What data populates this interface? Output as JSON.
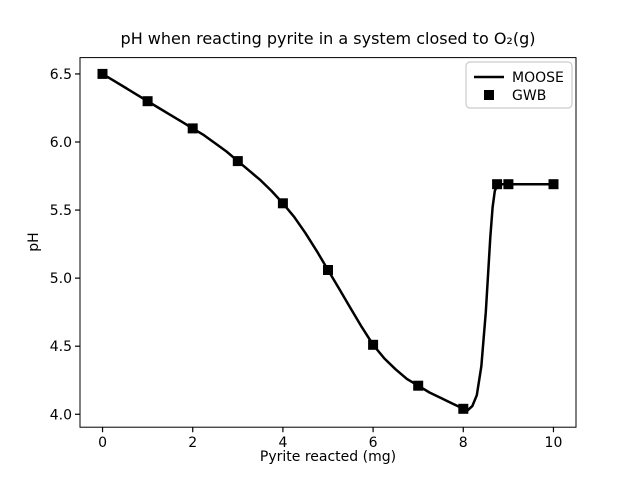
{
  "figure": {
    "background": "#ffffff",
    "foreground": "#000000"
  },
  "chart_data": {
    "type": "line",
    "title": "pH when reacting pyrite in a system closed to O₂(g)",
    "xlabel": "Pyrite reacted (mg)",
    "ylabel": "pH",
    "xlim": [
      -0.5,
      10.5
    ],
    "ylim": [
      3.905,
      6.62
    ],
    "grid": false,
    "legend_position": "upper-right",
    "x_ticks": [
      {
        "v": 0,
        "label": "0"
      },
      {
        "v": 2,
        "label": "2"
      },
      {
        "v": 4,
        "label": "4"
      },
      {
        "v": 6,
        "label": "6"
      },
      {
        "v": 8,
        "label": "8"
      },
      {
        "v": 10,
        "label": "10"
      }
    ],
    "y_ticks": [
      {
        "v": 4.0,
        "label": "4.0"
      },
      {
        "v": 4.5,
        "label": "4.5"
      },
      {
        "v": 5.0,
        "label": "5.0"
      },
      {
        "v": 5.5,
        "label": "5.5"
      },
      {
        "v": 6.0,
        "label": "6.0"
      },
      {
        "v": 6.5,
        "label": "6.5"
      }
    ],
    "series": [
      {
        "name": "MOOSE",
        "kind": "line",
        "color": "#000000",
        "line_width": 2.5,
        "x": [
          0,
          0.25,
          0.5,
          0.75,
          1,
          1.25,
          1.5,
          1.75,
          2,
          2.25,
          2.5,
          2.75,
          3,
          3.25,
          3.5,
          3.75,
          4,
          4.25,
          4.5,
          4.75,
          5,
          5.25,
          5.5,
          5.75,
          6,
          6.25,
          6.5,
          6.75,
          7,
          7.25,
          7.5,
          7.75,
          8,
          8.1,
          8.2,
          8.3,
          8.4,
          8.5,
          8.6,
          8.65,
          8.7,
          8.75,
          8.8,
          9,
          10
        ],
        "y": [
          6.5,
          6.45,
          6.4,
          6.35,
          6.3,
          6.25,
          6.2,
          6.15,
          6.1,
          6.05,
          5.99,
          5.93,
          5.86,
          5.79,
          5.72,
          5.64,
          5.55,
          5.45,
          5.33,
          5.2,
          5.06,
          4.92,
          4.78,
          4.64,
          4.51,
          4.41,
          4.33,
          4.26,
          4.21,
          4.16,
          4.12,
          4.08,
          4.04,
          4.03,
          4.06,
          4.14,
          4.35,
          4.75,
          5.3,
          5.52,
          5.64,
          5.68,
          5.69,
          5.69,
          5.69
        ]
      },
      {
        "name": "GWB",
        "kind": "scatter",
        "marker": "square",
        "marker_size": 10,
        "color": "#000000",
        "x": [
          0,
          1,
          2,
          3,
          4,
          5,
          6,
          7,
          8,
          8.75,
          9,
          10
        ],
        "y": [
          6.5,
          6.3,
          6.1,
          5.86,
          5.55,
          5.06,
          4.51,
          4.21,
          4.04,
          5.69,
          5.69,
          5.69
        ]
      }
    ]
  },
  "legend": {
    "border_color": "#cccccc",
    "entries": [
      {
        "label": "MOOSE",
        "glyph": "line-sample"
      },
      {
        "label": "GWB",
        "glyph": "square-marker"
      }
    ]
  }
}
